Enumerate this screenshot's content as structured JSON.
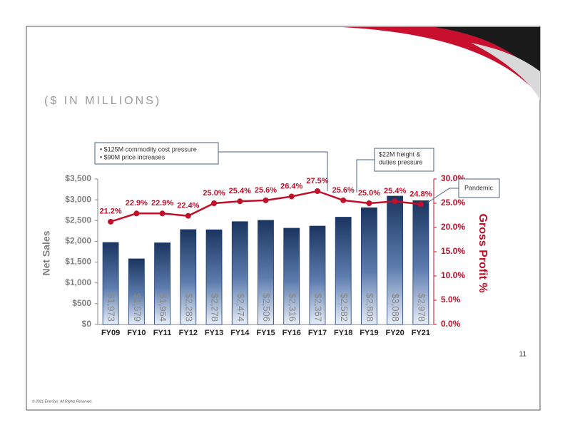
{
  "slide": {
    "subtitle": "($ IN MILLIONS)",
    "page_number": "11",
    "copyright": "© 2021 EnerSys. All Rights Reserved."
  },
  "chart_data": {
    "type": "bar",
    "categories": [
      "FY09",
      "FY10",
      "FY11",
      "FY12",
      "FY13",
      "FY14",
      "FY15",
      "FY16",
      "FY17",
      "FY18",
      "FY19",
      "FY20",
      "FY21"
    ],
    "y_label": "Net Sales",
    "y2_label": "Gross Profit %",
    "ylim": [
      0,
      3500
    ],
    "yticks": [
      {
        "value": 0,
        "label": "$0"
      },
      {
        "value": 500,
        "label": "$500"
      },
      {
        "value": 1000,
        "label": "$1,000"
      },
      {
        "value": 1500,
        "label": "$1,500"
      },
      {
        "value": 2000,
        "label": "$2,000"
      },
      {
        "value": 2500,
        "label": "$2,500"
      },
      {
        "value": 3000,
        "label": "$3,000"
      },
      {
        "value": 3500,
        "label": "$3,500"
      }
    ],
    "y2lim": [
      0,
      30
    ],
    "y2ticks": [
      {
        "value": 0,
        "label": "0.0%"
      },
      {
        "value": 5,
        "label": "5.0%"
      },
      {
        "value": 10,
        "label": "10.0%"
      },
      {
        "value": 15,
        "label": "15.0%"
      },
      {
        "value": 20,
        "label": "20.0%"
      },
      {
        "value": 25,
        "label": "25.0%"
      },
      {
        "value": 30,
        "label": "30.0%"
      }
    ],
    "series": [
      {
        "type": "bar",
        "color": "#1f3c6e",
        "values": [
          1973,
          1579,
          1964,
          2283,
          2278,
          2474,
          2506,
          2316,
          2367,
          2582,
          2808,
          3088,
          2978
        ],
        "value_labels": [
          "$1,973",
          "$1,579",
          "$1,964",
          "$2,283",
          "$2,278",
          "$2,474",
          "$2,506",
          "$2,316",
          "$2,367",
          "$2,582",
          "$2,808",
          "$3,088",
          "$2,978"
        ]
      },
      {
        "type": "line",
        "axis": "y2",
        "color": "#c0102a",
        "values": [
          21.2,
          22.9,
          22.9,
          22.4,
          25.0,
          25.4,
          25.6,
          26.4,
          27.5,
          25.6,
          25.0,
          25.4,
          24.8
        ],
        "value_labels": [
          "21.2%",
          "22.9%",
          "22.9%",
          "22.4%",
          "25.0%",
          "25.4%",
          "25.6%",
          "26.4%",
          "27.5%",
          "25.6%",
          "25.0%",
          "25.4%",
          "24.8%"
        ]
      }
    ],
    "annotations": [
      {
        "lines": [
          "• $125M commodity cost pressure",
          "• $90M price increases"
        ]
      },
      {
        "lines": [
          "$22M freight &",
          "duties pressure"
        ]
      },
      {
        "lines": [
          "Pandemic"
        ]
      }
    ]
  }
}
